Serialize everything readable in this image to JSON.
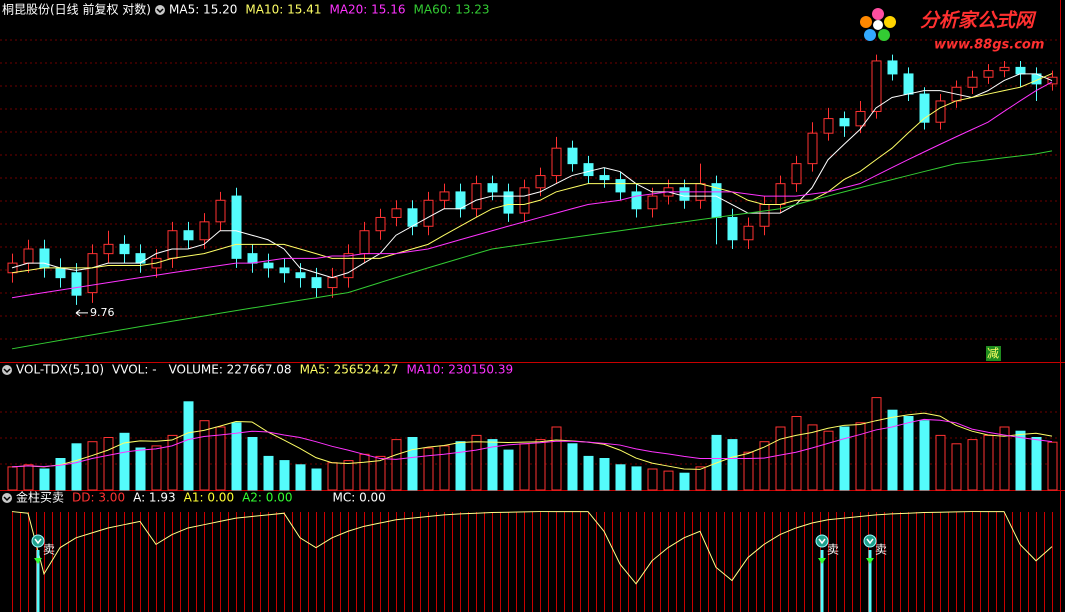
{
  "title": "桐昆股份(日线 前复权 对数)",
  "logo": {
    "name": "分析家公式网",
    "url": "www.88gs.com"
  },
  "chart_data": [
    {
      "type": "candlestick",
      "log_scale": true,
      "ylim": [
        8.72,
        17.3
      ],
      "up_color": "#ff3232",
      "down_color": "#54fcfc",
      "badge": "减",
      "open": [
        10.4,
        10.6,
        10.9,
        10.5,
        10.4,
        10.0,
        10.8,
        11.0,
        10.8,
        10.5,
        10.7,
        11.3,
        11.1,
        11.5,
        12.1,
        10.8,
        10.6,
        10.5,
        10.4,
        10.3,
        10.1,
        10.3,
        10.8,
        11.3,
        11.6,
        11.8,
        11.4,
        12.0,
        12.2,
        11.8,
        12.4,
        12.2,
        11.7,
        12.3,
        12.6,
        13.3,
        12.9,
        12.6,
        12.5,
        12.2,
        11.8,
        12.1,
        12.3,
        12.0,
        12.4,
        11.6,
        11.1,
        11.4,
        11.9,
        12.4,
        12.9,
        13.7,
        14.1,
        13.9,
        14.3,
        15.8,
        15.4,
        14.8,
        14.0,
        14.6,
        15.0,
        15.3,
        15.5,
        15.6,
        15.4,
        15.1
      ],
      "high": [
        10.8,
        11.1,
        11.1,
        10.7,
        10.6,
        11.0,
        11.3,
        11.2,
        11.0,
        10.9,
        11.5,
        11.5,
        11.7,
        12.2,
        12.3,
        11.0,
        10.8,
        10.7,
        10.6,
        10.5,
        10.5,
        11.0,
        11.5,
        11.8,
        12.0,
        12.0,
        12.2,
        12.4,
        12.4,
        12.6,
        12.6,
        12.4,
        12.5,
        12.8,
        13.6,
        13.5,
        13.1,
        12.8,
        12.7,
        12.4,
        12.3,
        12.5,
        12.5,
        12.9,
        12.6,
        11.8,
        11.6,
        12.1,
        12.6,
        13.1,
        14.0,
        14.4,
        14.3,
        14.6,
        16.0,
        16.0,
        15.6,
        15.0,
        14.8,
        15.2,
        15.5,
        15.7,
        15.8,
        15.8,
        15.6,
        15.5
      ],
      "low": [
        10.2,
        10.4,
        10.3,
        10.1,
        9.76,
        9.8,
        10.6,
        10.6,
        10.4,
        10.3,
        10.5,
        10.9,
        10.9,
        11.3,
        10.5,
        10.4,
        10.3,
        10.2,
        10.1,
        9.9,
        9.9,
        10.1,
        10.6,
        11.1,
        11.4,
        11.2,
        11.2,
        11.8,
        11.6,
        11.6,
        12.0,
        11.5,
        11.5,
        12.1,
        12.4,
        12.7,
        12.4,
        12.3,
        12.0,
        11.6,
        11.6,
        11.9,
        11.8,
        11.8,
        11.0,
        10.9,
        10.9,
        11.2,
        11.7,
        12.2,
        12.7,
        13.5,
        13.6,
        13.7,
        14.1,
        15.2,
        14.6,
        13.8,
        13.8,
        14.4,
        14.8,
        15.1,
        15.3,
        15.0,
        14.6,
        14.9
      ],
      "close": [
        10.6,
        10.9,
        10.5,
        10.3,
        9.95,
        10.8,
        11.0,
        10.8,
        10.6,
        10.7,
        11.3,
        11.1,
        11.5,
        12.0,
        10.7,
        10.6,
        10.5,
        10.4,
        10.3,
        10.1,
        10.3,
        10.8,
        11.3,
        11.6,
        11.8,
        11.4,
        12.0,
        12.2,
        11.8,
        12.4,
        12.2,
        11.7,
        12.3,
        12.6,
        13.3,
        12.9,
        12.6,
        12.5,
        12.2,
        11.8,
        12.1,
        12.3,
        12.0,
        12.4,
        11.6,
        11.1,
        11.4,
        11.9,
        12.4,
        12.9,
        13.7,
        14.1,
        13.9,
        14.3,
        15.8,
        15.4,
        14.8,
        14.0,
        14.6,
        15.0,
        15.3,
        15.5,
        15.6,
        15.4,
        15.1,
        15.3
      ],
      "series": [
        {
          "name": "MA5",
          "label": "MA5: 15.20",
          "color": "#ffffff",
          "values": [
            10.5,
            10.6,
            10.6,
            10.5,
            10.45,
            10.5,
            10.6,
            10.6,
            10.6,
            10.8,
            10.9,
            10.9,
            11.0,
            11.3,
            11.3,
            11.2,
            11.1,
            10.9,
            10.5,
            10.4,
            10.3,
            10.4,
            10.6,
            10.8,
            11.2,
            11.4,
            11.6,
            11.8,
            11.8,
            12.0,
            12.1,
            12.1,
            12.1,
            12.2,
            12.4,
            12.6,
            12.7,
            12.8,
            12.7,
            12.4,
            12.2,
            12.2,
            12.1,
            12.1,
            12.1,
            11.9,
            11.7,
            11.7,
            11.7,
            11.9,
            12.3,
            13.0,
            13.4,
            13.8,
            14.4,
            14.7,
            14.8,
            14.9,
            14.9,
            14.8,
            14.7,
            14.9,
            15.2,
            15.4,
            15.4,
            15.2
          ]
        },
        {
          "name": "MA10",
          "label": "MA10: 15.41",
          "color": "#ffff66",
          "values": [
            10.4,
            10.45,
            10.5,
            10.5,
            10.5,
            10.5,
            10.55,
            10.55,
            10.55,
            10.6,
            10.7,
            10.75,
            10.8,
            10.9,
            11.0,
            11.0,
            11.0,
            11.0,
            10.9,
            10.8,
            10.7,
            10.7,
            10.7,
            10.7,
            10.8,
            10.9,
            11.0,
            11.2,
            11.4,
            11.6,
            11.8,
            11.9,
            11.9,
            12.0,
            12.2,
            12.3,
            12.4,
            12.4,
            12.4,
            12.4,
            12.4,
            12.4,
            12.4,
            12.4,
            12.3,
            12.2,
            12.0,
            11.9,
            11.9,
            12.0,
            12.0,
            12.2,
            12.5,
            12.7,
            13.0,
            13.3,
            13.7,
            14.1,
            14.4,
            14.6,
            14.7,
            14.8,
            14.9,
            15.0,
            15.2,
            15.41
          ]
        },
        {
          "name": "MA20",
          "label": "MA20: 15.16",
          "color": "#ff33ff",
          "values": [
            9.9,
            9.95,
            10.0,
            10.05,
            10.1,
            10.15,
            10.2,
            10.25,
            10.3,
            10.35,
            10.4,
            10.45,
            10.5,
            10.55,
            10.6,
            10.6,
            10.65,
            10.7,
            10.7,
            10.7,
            10.75,
            10.75,
            10.8,
            10.8,
            10.8,
            10.85,
            10.9,
            11.0,
            11.1,
            11.2,
            11.3,
            11.4,
            11.5,
            11.6,
            11.7,
            11.8,
            11.9,
            11.95,
            12.0,
            12.1,
            12.15,
            12.2,
            12.2,
            12.2,
            12.2,
            12.2,
            12.15,
            12.1,
            12.1,
            12.1,
            12.15,
            12.2,
            12.3,
            12.4,
            12.6,
            12.8,
            13.0,
            13.2,
            13.4,
            13.6,
            13.8,
            14.0,
            14.3,
            14.6,
            14.9,
            15.16
          ]
        },
        {
          "name": "MA60",
          "label": "MA60: 13.23",
          "color": "#33cc33",
          "values": [
            8.95,
            9.0,
            9.05,
            9.1,
            9.15,
            9.2,
            9.25,
            9.3,
            9.35,
            9.4,
            9.45,
            9.5,
            9.55,
            9.6,
            9.65,
            9.7,
            9.75,
            9.8,
            9.85,
            9.9,
            9.95,
            10.0,
            10.1,
            10.2,
            10.3,
            10.4,
            10.5,
            10.6,
            10.7,
            10.8,
            10.9,
            10.95,
            11.0,
            11.05,
            11.1,
            11.15,
            11.2,
            11.25,
            11.3,
            11.35,
            11.4,
            11.45,
            11.5,
            11.55,
            11.6,
            11.65,
            11.7,
            11.75,
            11.8,
            11.9,
            12.0,
            12.1,
            12.2,
            12.3,
            12.4,
            12.5,
            12.6,
            12.7,
            12.8,
            12.9,
            12.95,
            13.0,
            13.05,
            13.1,
            13.15,
            13.23
          ]
        }
      ]
    },
    {
      "type": "volume",
      "name": "VOL-TDX(5,10)",
      "vvol": "VVOL: -",
      "ylim": [
        0,
        500000
      ],
      "values_label": "VOLUME: 227667.08",
      "values": [
        110000,
        120000,
        100000,
        150000,
        220000,
        230000,
        250000,
        270000,
        200000,
        210000,
        260000,
        420000,
        330000,
        300000,
        320000,
        250000,
        160000,
        140000,
        120000,
        100000,
        130000,
        140000,
        170000,
        160000,
        240000,
        250000,
        200000,
        210000,
        230000,
        260000,
        240000,
        190000,
        220000,
        240000,
        300000,
        220000,
        160000,
        150000,
        120000,
        110000,
        100000,
        90000,
        80000,
        110000,
        260000,
        240000,
        180000,
        230000,
        300000,
        350000,
        310000,
        280000,
        300000,
        320000,
        440000,
        380000,
        350000,
        330000,
        260000,
        220000,
        240000,
        260000,
        300000,
        280000,
        250000,
        227667.08
      ],
      "series": [
        {
          "name": "MA5",
          "label": "MA5: 256524.27",
          "color": "#ffff66",
          "values": [
            110000,
            115000,
            110000,
            120000,
            140000,
            164000,
            190000,
            224000,
            234000,
            232000,
            238000,
            272000,
            284000,
            304000,
            326000,
            324000,
            276000,
            238000,
            198000,
            154000,
            130000,
            126000,
            132000,
            140000,
            168000,
            192000,
            204000,
            212000,
            226000,
            230000,
            228000,
            226000,
            228000,
            230000,
            238000,
            234000,
            228000,
            218000,
            190000,
            152000,
            128000,
            114000,
            100000,
            98000,
            128000,
            156000,
            174000,
            204000,
            242000,
            260000,
            274000,
            294000,
            308000,
            312000,
            330000,
            346000,
            358000,
            366000,
            352000,
            308000,
            280000,
            262000,
            256000,
            264000,
            270000,
            256524.27
          ]
        },
        {
          "name": "MA10",
          "label": "MA10: 230150.39",
          "color": "#ff33ff",
          "values": [
            110000,
            115000,
            112000,
            118000,
            130000,
            150000,
            165000,
            180000,
            190000,
            196000,
            210000,
            240000,
            255000,
            262000,
            270000,
            280000,
            276000,
            262000,
            250000,
            230000,
            208000,
            190000,
            170000,
            150000,
            146000,
            155000,
            163000,
            170000,
            180000,
            190000,
            205000,
            215000,
            220000,
            225000,
            232000,
            232000,
            228000,
            222000,
            214000,
            196000,
            182000,
            172000,
            160000,
            150000,
            150000,
            150000,
            150000,
            152000,
            166000,
            180000,
            200000,
            222000,
            244000,
            264000,
            286000,
            300000,
            320000,
            336000,
            332000,
            320000,
            290000,
            275000,
            262000,
            250000,
            240000,
            230150.39
          ]
        }
      ]
    },
    {
      "type": "indicator",
      "name": "金柱买卖",
      "ylim": [
        0,
        3.2
      ],
      "legend": [
        {
          "text": "DD: 3.00",
          "color": "#ff3232"
        }
      ],
      "series": [
        {
          "name": "A",
          "label": "A: 1.93",
          "color": "#ffff88",
          "values": [
            3.0,
            2.95,
            1.1,
            1.9,
            2.2,
            2.35,
            2.5,
            2.6,
            2.7,
            2.0,
            2.3,
            2.5,
            2.6,
            2.7,
            2.8,
            2.85,
            2.9,
            2.95,
            2.2,
            1.9,
            2.2,
            2.4,
            2.55,
            2.65,
            2.75,
            2.8,
            2.85,
            2.9,
            2.93,
            2.95,
            2.97,
            2.98,
            2.99,
            3.0,
            3.0,
            3.0,
            3.0,
            2.4,
            1.4,
            0.8,
            1.5,
            1.9,
            2.2,
            2.4,
            1.3,
            0.9,
            1.6,
            2.0,
            2.3,
            2.5,
            2.65,
            2.75,
            2.8,
            2.85,
            2.9,
            2.93,
            2.95,
            2.97,
            2.98,
            2.99,
            3.0,
            3.0,
            3.0,
            2.0,
            1.5,
            1.93
          ]
        }
      ],
      "legend_after": [
        {
          "text": "A1: 0.00",
          "color": "#ffff33"
        },
        {
          "text": "A2: 0.00",
          "color": "#33ff33"
        },
        {
          "text": "MC: 0.00",
          "color": "#ffffff"
        }
      ],
      "signal_labels": [
        null,
        null,
        "卖",
        null,
        null,
        null,
        null,
        null,
        null,
        null,
        null,
        null,
        null,
        null,
        null,
        null,
        null,
        null,
        null,
        null,
        null,
        null,
        null,
        null,
        null,
        null,
        null,
        null,
        null,
        null,
        null,
        null,
        null,
        null,
        null,
        null,
        null,
        null,
        null,
        null,
        null,
        null,
        null,
        null,
        null,
        null,
        null,
        null,
        null,
        null,
        null,
        "卖",
        null,
        null,
        "卖",
        null,
        null,
        null,
        null,
        null,
        null,
        null,
        null,
        null,
        null,
        null
      ]
    }
  ]
}
